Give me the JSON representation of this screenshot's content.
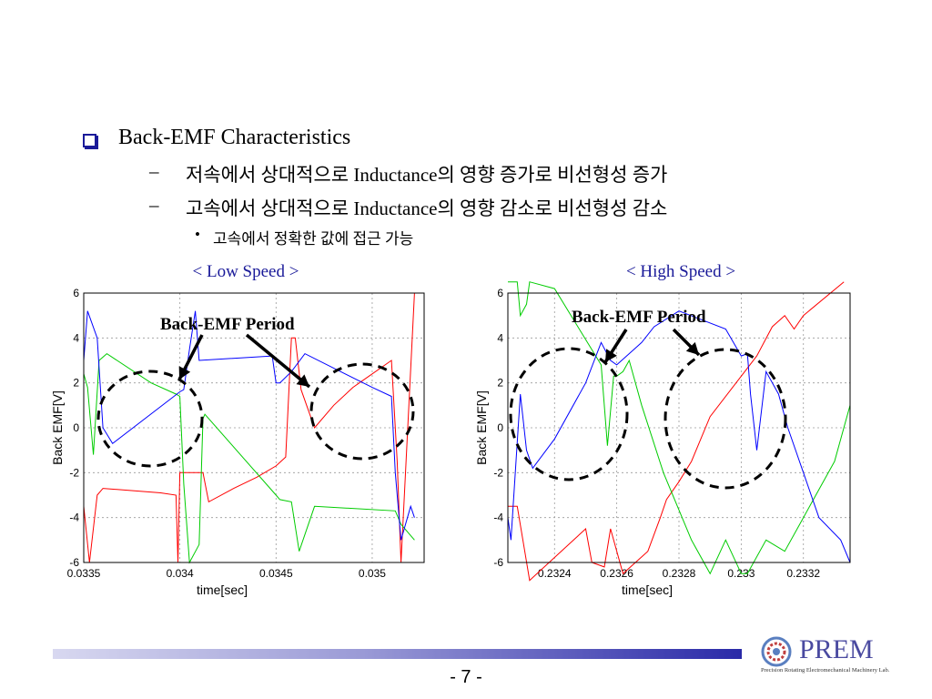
{
  "slide": {
    "heading": "Back-EMF Characteristics",
    "dash": "–",
    "sub1": "저속에서 상대적으로 Inductance의 영향 증가로 비선형성 증가",
    "sub2": "고속에서 상대적으로 Inductance의 영향 감소로 비선형성 감소",
    "bullet_char": "•",
    "sub2_bullet": "고속에서 정확한 값에 접근 가능",
    "page_number": "- 7 -",
    "logo_text": "PREM",
    "logo_subtitle": "Precision Rotating Electromechanical Machinery Lab."
  },
  "colors": {
    "phase_a": "#ff0000",
    "phase_b": "#00cc00",
    "phase_c": "#0000ff",
    "caption": "#1a1a99",
    "grid": "#9a9a9a"
  },
  "chart_data": [
    {
      "type": "line",
      "caption": "< Low Speed >",
      "annotation": "Back-EMF Period",
      "xlabel": "time[sec]",
      "ylabel": "Back EMF[V]",
      "xlim": [
        0.0335,
        0.03527
      ],
      "ylim": [
        -6,
        6
      ],
      "xticks": [
        "0.0335",
        "0.034",
        "0.0345",
        "0.035"
      ],
      "xtick_values": [
        0.0335,
        0.034,
        0.0345,
        0.035
      ],
      "yticks": [
        -6,
        -4,
        -2,
        0,
        2,
        4,
        6
      ],
      "grid": true,
      "series": [
        {
          "color": "#ff0000",
          "points": [
            [
              0.0335,
              -3.5
            ],
            [
              0.03353,
              -6
            ],
            [
              0.03357,
              -3
            ],
            [
              0.0336,
              -2.7
            ],
            [
              0.0339,
              -2.9
            ],
            [
              0.03398,
              -3
            ],
            [
              0.03399,
              -6
            ],
            [
              0.034,
              -2
            ],
            [
              0.03412,
              -2
            ],
            [
              0.03415,
              -3.3
            ],
            [
              0.03428,
              -2.7
            ],
            [
              0.0344,
              -2.2
            ],
            [
              0.0345,
              -1.7
            ],
            [
              0.03455,
              -1.3
            ],
            [
              0.03458,
              4
            ],
            [
              0.0346,
              4
            ],
            [
              0.03463,
              1.7
            ],
            [
              0.0347,
              0
            ],
            [
              0.0348,
              1
            ],
            [
              0.0349,
              1.8
            ],
            [
              0.03495,
              2.1
            ],
            [
              0.0351,
              3
            ],
            [
              0.03513,
              -1.5
            ],
            [
              0.03515,
              -6
            ],
            [
              0.03522,
              6
            ]
          ]
        },
        {
          "color": "#00cc00",
          "points": [
            [
              0.0335,
              2.4
            ],
            [
              0.03352,
              1.8
            ],
            [
              0.03355,
              -1.2
            ],
            [
              0.03358,
              3
            ],
            [
              0.03362,
              3.3
            ],
            [
              0.03385,
              2
            ],
            [
              0.03398,
              1.5
            ],
            [
              0.034,
              1.4
            ],
            [
              0.03402,
              -2.5
            ],
            [
              0.03405,
              -6
            ],
            [
              0.0341,
              -5.2
            ],
            [
              0.03412,
              0.4
            ],
            [
              0.03413,
              0.6
            ],
            [
              0.0345,
              -3
            ],
            [
              0.03452,
              -3.2
            ],
            [
              0.03458,
              -3.3
            ],
            [
              0.03462,
              -5.5
            ],
            [
              0.0347,
              -3.5
            ],
            [
              0.03512,
              -3.7
            ],
            [
              0.03515,
              -4.3
            ],
            [
              0.03522,
              -5
            ]
          ]
        },
        {
          "color": "#0000ff",
          "points": [
            [
              0.0335,
              3
            ],
            [
              0.03352,
              5.2
            ],
            [
              0.03357,
              4
            ],
            [
              0.0336,
              0
            ],
            [
              0.03365,
              -0.7
            ],
            [
              0.034,
              1.6
            ],
            [
              0.03402,
              1.7
            ],
            [
              0.03405,
              3.5
            ],
            [
              0.03408,
              5.2
            ],
            [
              0.0341,
              3
            ],
            [
              0.03448,
              3.2
            ],
            [
              0.0345,
              2
            ],
            [
              0.03452,
              2
            ],
            [
              0.03458,
              2.5
            ],
            [
              0.03465,
              3.3
            ],
            [
              0.035,
              1.8
            ],
            [
              0.0351,
              1.4
            ],
            [
              0.03512,
              -2
            ],
            [
              0.03515,
              -5
            ],
            [
              0.0352,
              -3.5
            ],
            [
              0.03522,
              -4
            ]
          ]
        }
      ]
    },
    {
      "type": "line",
      "caption": "< High Speed >",
      "annotation": "Back-EMF Period",
      "xlabel": "time[sec]",
      "ylabel": "Back EMF[V]",
      "xlim": [
        0.23225,
        0.23335
      ],
      "ylim": [
        -6,
        6
      ],
      "xticks": [
        "0.2324",
        "0.2326",
        "0.2328",
        "0.233",
        "0.2332"
      ],
      "xtick_values": [
        0.2324,
        0.2326,
        0.2328,
        0.233,
        0.2332
      ],
      "yticks": [
        -6,
        -4,
        -2,
        0,
        2,
        4,
        6
      ],
      "grid": true,
      "series": [
        {
          "color": "#ff0000",
          "points": [
            [
              0.23225,
              -3.5
            ],
            [
              0.23228,
              -3.5
            ],
            [
              0.23232,
              -6.8
            ],
            [
              0.2325,
              -4.5
            ],
            [
              0.23252,
              -6
            ],
            [
              0.23256,
              -6.2
            ],
            [
              0.23258,
              -4.5
            ],
            [
              0.23262,
              -6.5
            ],
            [
              0.2327,
              -5.5
            ],
            [
              0.23274,
              -4
            ],
            [
              0.23276,
              -3.2
            ],
            [
              0.2328,
              -2.4
            ],
            [
              0.23284,
              -1.5
            ],
            [
              0.2329,
              0.5
            ],
            [
              0.23305,
              3.2
            ],
            [
              0.2331,
              4.5
            ],
            [
              0.23314,
              5
            ],
            [
              0.23317,
              4.4
            ],
            [
              0.2332,
              5
            ],
            [
              0.23333,
              6.5
            ]
          ]
        },
        {
          "color": "#00cc00",
          "points": [
            [
              0.23225,
              6.5
            ],
            [
              0.23228,
              6.5
            ],
            [
              0.23229,
              5
            ],
            [
              0.23231,
              5.5
            ],
            [
              0.23232,
              6.5
            ],
            [
              0.2324,
              6.2
            ],
            [
              0.23255,
              2.8
            ],
            [
              0.23257,
              -0.8
            ],
            [
              0.23259,
              2.3
            ],
            [
              0.2326,
              2.3
            ],
            [
              0.23262,
              2.5
            ],
            [
              0.23264,
              3
            ],
            [
              0.23268,
              1
            ],
            [
              0.23275,
              -2
            ],
            [
              0.23284,
              -5
            ],
            [
              0.2329,
              -6.5
            ],
            [
              0.23295,
              -5
            ],
            [
              0.233,
              -6.5
            ],
            [
              0.23302,
              -6.5
            ],
            [
              0.23308,
              -5
            ],
            [
              0.23314,
              -5.5
            ],
            [
              0.2332,
              -4
            ],
            [
              0.2333,
              -1.5
            ],
            [
              0.23335,
              1
            ]
          ]
        },
        {
          "color": "#0000ff",
          "points": [
            [
              0.23225,
              -4
            ],
            [
              0.23226,
              -5
            ],
            [
              0.23229,
              1.5
            ],
            [
              0.23231,
              -1
            ],
            [
              0.23233,
              -1.8
            ],
            [
              0.2324,
              -0.5
            ],
            [
              0.2325,
              2
            ],
            [
              0.23255,
              3.8
            ],
            [
              0.23258,
              3
            ],
            [
              0.2326,
              2.8
            ],
            [
              0.23268,
              3.8
            ],
            [
              0.23272,
              4.5
            ],
            [
              0.2328,
              5.2
            ],
            [
              0.23295,
              4.4
            ],
            [
              0.233,
              3.2
            ],
            [
              0.23302,
              3.3
            ],
            [
              0.23303,
              1.5
            ],
            [
              0.23305,
              -1
            ],
            [
              0.23308,
              2.5
            ],
            [
              0.23312,
              1.5
            ],
            [
              0.23315,
              0
            ],
            [
              0.2332,
              -2
            ],
            [
              0.23325,
              -4
            ],
            [
              0.23332,
              -5
            ],
            [
              0.23335,
              -6
            ]
          ]
        }
      ]
    }
  ]
}
